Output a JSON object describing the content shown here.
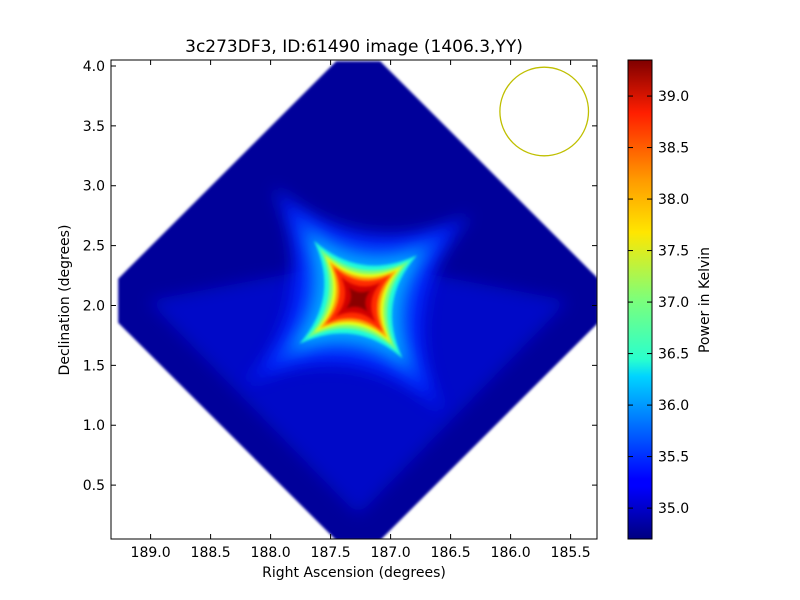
{
  "chart_data": {
    "type": "heatmap",
    "title": "3c273DF3, ID:61490 image (1406.3,YY)",
    "xlabel": "Right Ascension (degrees)",
    "ylabel": "Declination (degrees)",
    "xlim": [
      189.33,
      185.28
    ],
    "ylim": [
      0.05,
      4.05
    ],
    "x_ticks": [
      "189.0",
      "188.5",
      "188.0",
      "187.5",
      "187.0",
      "186.5",
      "186.0",
      "185.5"
    ],
    "x_tick_values": [
      189.0,
      188.5,
      188.0,
      187.5,
      187.0,
      186.5,
      186.0,
      185.5
    ],
    "y_ticks": [
      "0.5",
      "1.0",
      "1.5",
      "2.0",
      "2.5",
      "3.0",
      "3.5",
      "4.0"
    ],
    "y_tick_values": [
      0.5,
      1.0,
      1.5,
      2.0,
      2.5,
      3.0,
      3.5,
      4.0
    ],
    "grid": false,
    "colormap": "jet",
    "colorbar": {
      "label": "Power in Kelvin",
      "range": [
        34.7,
        39.35
      ],
      "ticks": [
        "35.0",
        "35.5",
        "36.0",
        "36.5",
        "37.0",
        "37.5",
        "38.0",
        "38.5",
        "39.0"
      ],
      "tick_values": [
        35.0,
        35.5,
        36.0,
        36.5,
        37.0,
        37.5,
        38.0,
        38.5,
        39.0
      ]
    },
    "map": {
      "footprint": "diamond",
      "center_ra": 187.27,
      "center_dec": 2.04,
      "half_extent_deg": 2.0,
      "background_value": 34.8,
      "peak_value": 39.3,
      "source_center_ra": 187.27,
      "source_center_dec": 2.05
    },
    "beam": {
      "center_ra": 185.72,
      "center_dec": 3.62,
      "radius_deg": 0.37,
      "color": "#bfbf00"
    }
  }
}
